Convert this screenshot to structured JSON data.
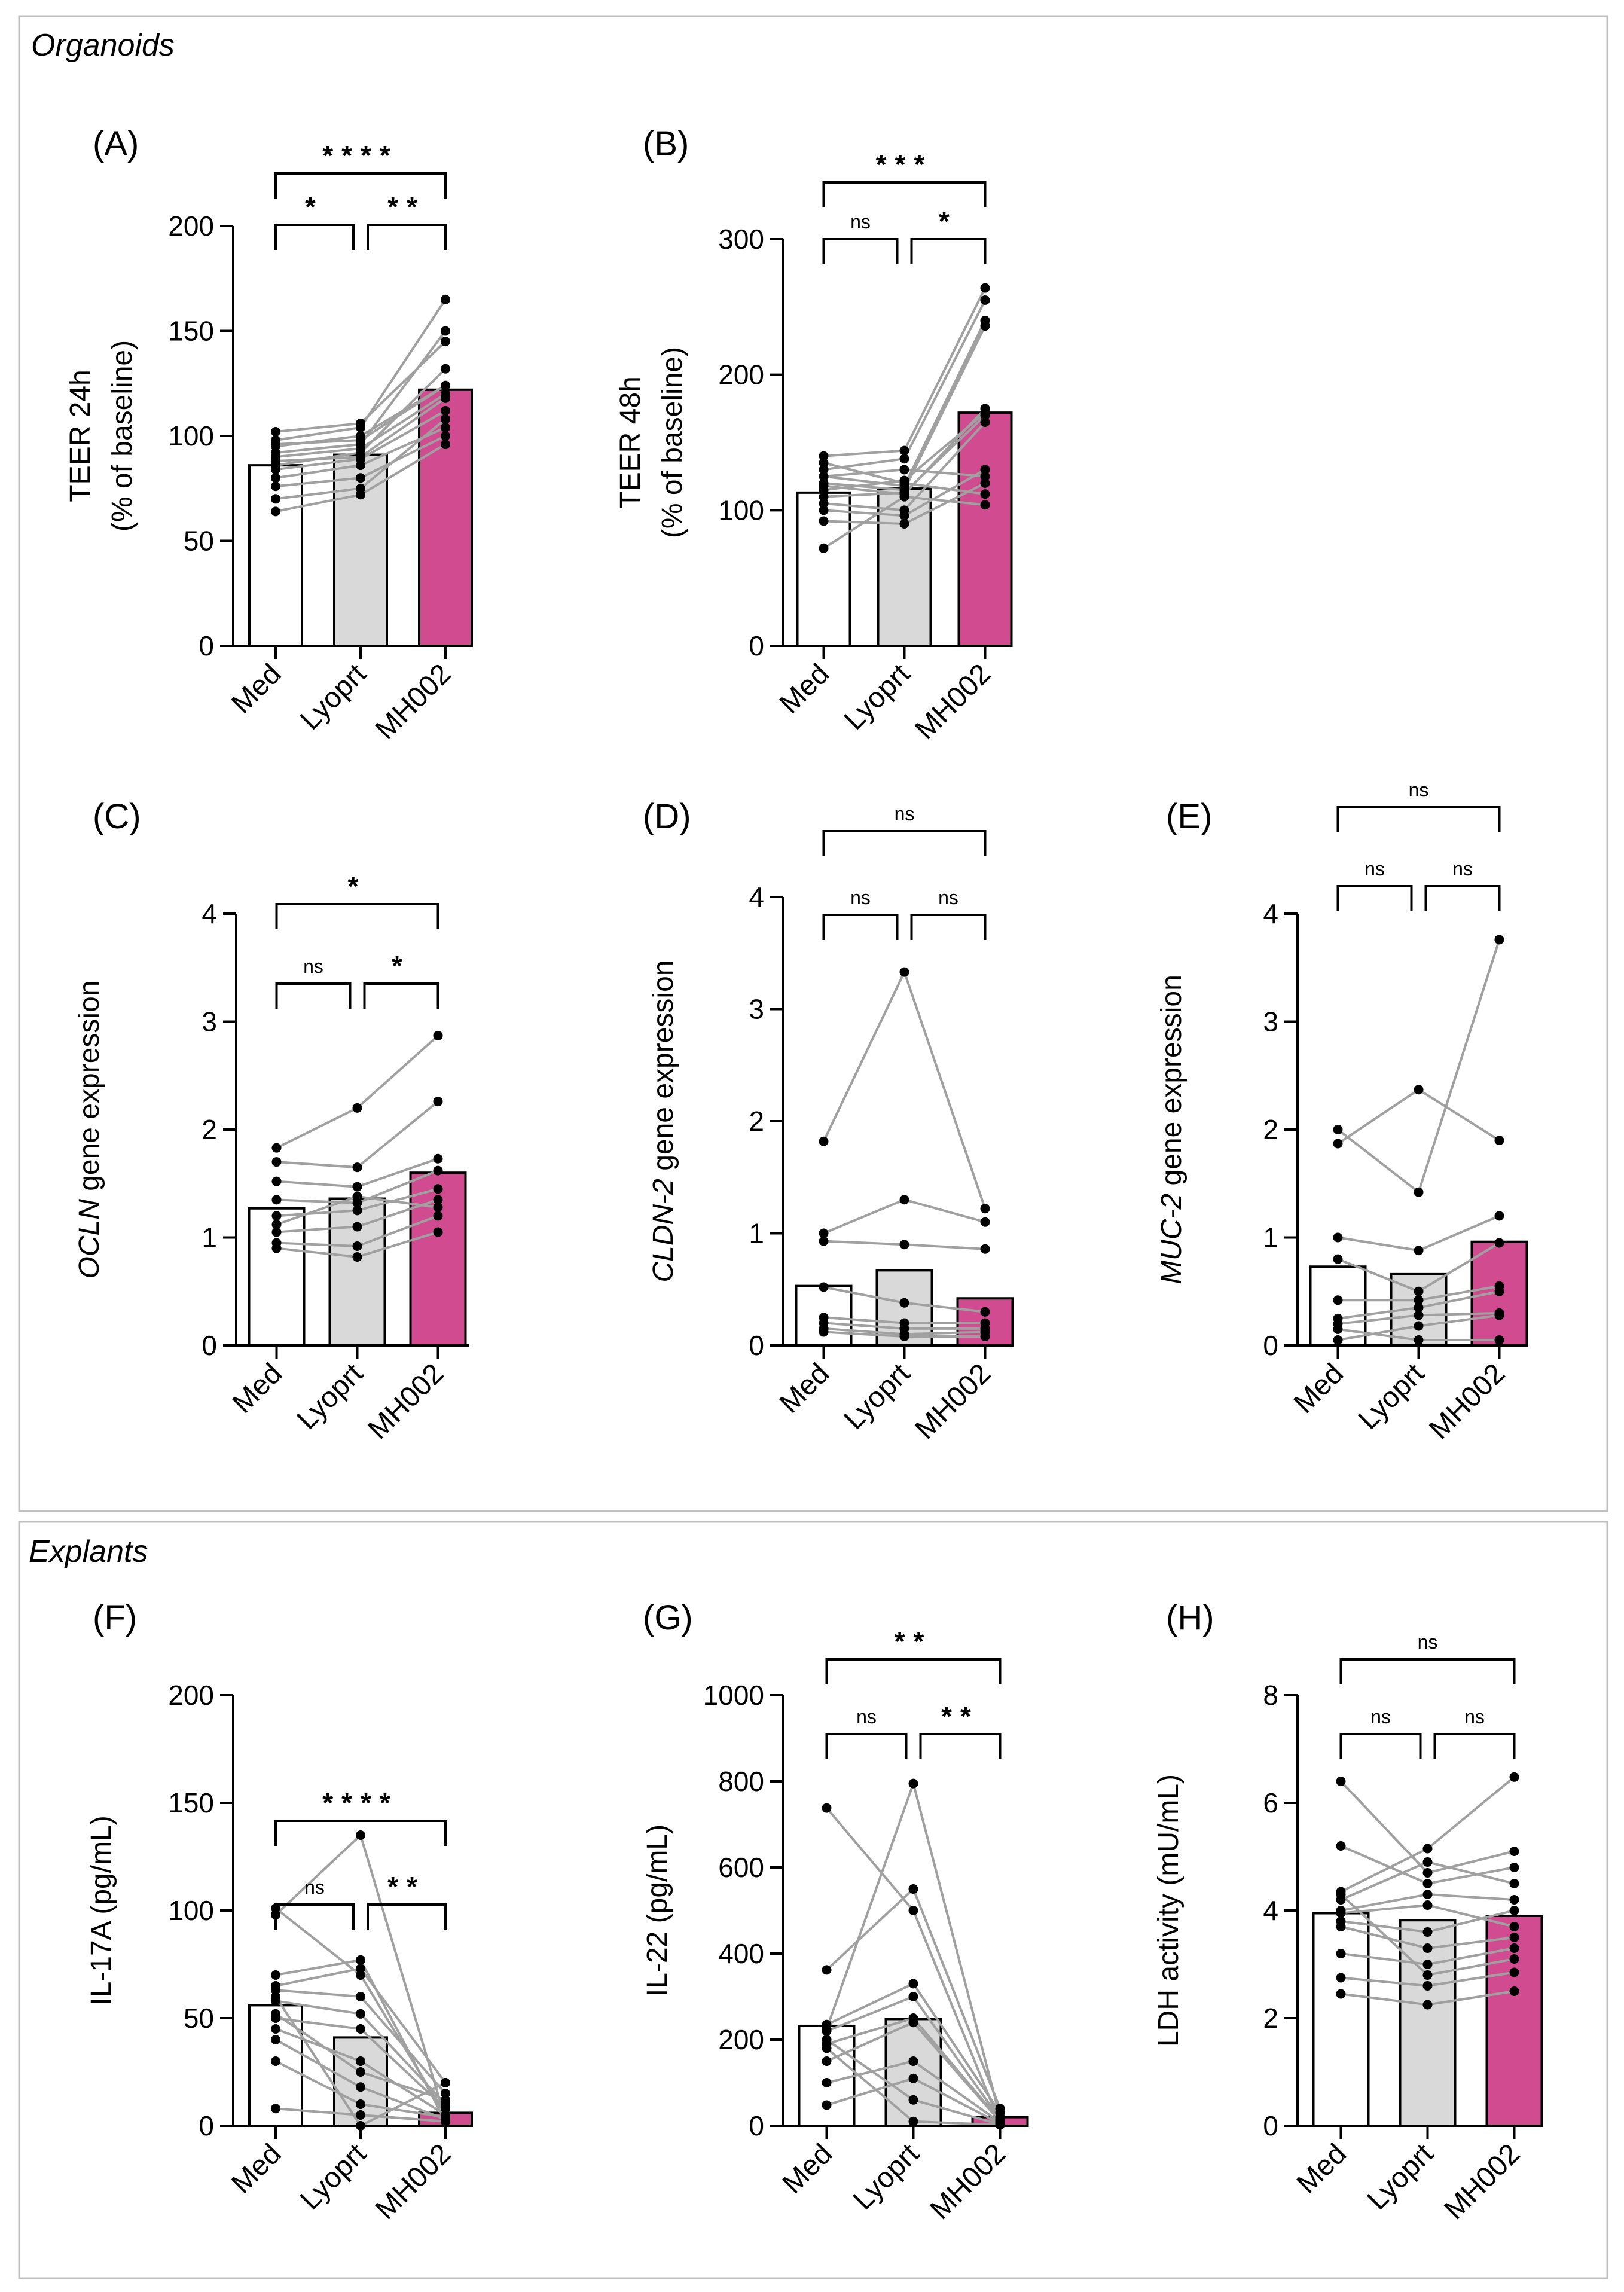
{
  "sections": [
    {
      "id": "organoids",
      "title": "Organoids"
    },
    {
      "id": "explants",
      "title": "Explants"
    }
  ],
  "colors": {
    "med": "#ffffff",
    "lyoprt": "#d9d9d9",
    "mh002": "#d14b91",
    "points": "#000000",
    "lines": "#a0a0a0",
    "axis": "#000000",
    "frame": "#c0c0c0"
  },
  "chart_data": [
    {
      "id": "A",
      "panel_label": "(A)",
      "type": "bar",
      "ylabel_lines": [
        {
          "parts": [
            {
              "t": "TEER 24h"
            }
          ]
        },
        {
          "parts": [
            {
              "t": "(% of baseline)"
            }
          ]
        }
      ],
      "ylim": [
        0,
        200
      ],
      "yticks": [
        0,
        50,
        100,
        150,
        200
      ],
      "categories": [
        "Med",
        "Lyoprt",
        "MH002"
      ],
      "values": [
        86,
        91,
        122
      ],
      "paired": [
        [
          88,
          90,
          118
        ],
        [
          92,
          96,
          150
        ],
        [
          98,
          104,
          165
        ],
        [
          80,
          86,
          104
        ],
        [
          95,
          100,
          124
        ],
        [
          84,
          89,
          112
        ],
        [
          102,
          106,
          145
        ],
        [
          90,
          94,
          120
        ],
        [
          64,
          72,
          96
        ],
        [
          76,
          80,
          100
        ],
        [
          86,
          92,
          132
        ],
        [
          70,
          75,
          108
        ],
        [
          96,
          98,
          124
        ]
      ],
      "annotations": [
        {
          "from": 0,
          "to": 2,
          "level": 2,
          "label": "****"
        },
        {
          "from": 0,
          "to": 1,
          "level": 1,
          "label": "*"
        },
        {
          "from": 1,
          "to": 2,
          "level": 1,
          "label": "**"
        }
      ]
    },
    {
      "id": "B",
      "panel_label": "(B)",
      "type": "bar",
      "ylabel_lines": [
        {
          "parts": [
            {
              "t": "TEER 48h"
            }
          ]
        },
        {
          "parts": [
            {
              "t": "(% of baseline)"
            }
          ]
        }
      ],
      "ylim": [
        0,
        300
      ],
      "yticks": [
        0,
        100,
        200,
        300
      ],
      "categories": [
        "Med",
        "Lyoprt",
        "MH002"
      ],
      "values": [
        113,
        116,
        172
      ],
      "paired": [
        [
          140,
          144,
          264
        ],
        [
          130,
          138,
          255
        ],
        [
          125,
          118,
          240
        ],
        [
          120,
          115,
          236
        ],
        [
          118,
          112,
          175
        ],
        [
          110,
          113,
          170
        ],
        [
          105,
          100,
          165
        ],
        [
          100,
          96,
          130
        ],
        [
          92,
          90,
          120
        ],
        [
          125,
          130,
          125
        ],
        [
          72,
          110,
          104
        ],
        [
          115,
          122,
          172
        ],
        [
          135,
          120,
          112
        ]
      ],
      "annotations": [
        {
          "from": 0,
          "to": 2,
          "level": 2,
          "label": "***"
        },
        {
          "from": 0,
          "to": 1,
          "level": 1,
          "label": "ns"
        },
        {
          "from": 1,
          "to": 2,
          "level": 1,
          "label": "*"
        }
      ]
    },
    {
      "id": "C",
      "panel_label": "(C)",
      "type": "bar",
      "ylabel_lines": [
        {
          "parts": [
            {
              "t": "OCLN",
              "i": true
            },
            {
              "t": " gene expression"
            }
          ]
        }
      ],
      "ylim": [
        0,
        4
      ],
      "yticks": [
        0,
        1,
        2,
        3,
        4
      ],
      "categories": [
        "Med",
        "Lyoprt",
        "MH002"
      ],
      "values": [
        1.27,
        1.36,
        1.6
      ],
      "paired": [
        [
          1.83,
          2.2,
          2.87
        ],
        [
          1.7,
          1.65,
          2.26
        ],
        [
          1.52,
          1.47,
          1.73
        ],
        [
          1.35,
          1.32,
          1.62
        ],
        [
          1.2,
          1.25,
          1.45
        ],
        [
          1.05,
          1.1,
          1.35
        ],
        [
          0.95,
          0.92,
          1.2
        ],
        [
          0.9,
          0.82,
          1.05
        ],
        [
          1.12,
          1.38,
          1.28
        ]
      ],
      "annotations": [
        {
          "from": 0,
          "to": 2,
          "level": 2,
          "label": "*"
        },
        {
          "from": 0,
          "to": 1,
          "level": 1,
          "label": "ns"
        },
        {
          "from": 1,
          "to": 2,
          "level": 1,
          "label": "*"
        }
      ]
    },
    {
      "id": "D",
      "panel_label": "(D)",
      "type": "bar",
      "ylabel_lines": [
        {
          "parts": [
            {
              "t": "CLDN-2",
              "i": true
            },
            {
              "t": " gene expression"
            }
          ]
        }
      ],
      "ylim": [
        0,
        4
      ],
      "yticks": [
        0,
        1,
        2,
        3,
        4
      ],
      "categories": [
        "Med",
        "Lyoprt",
        "MH002"
      ],
      "values": [
        0.53,
        0.67,
        0.42
      ],
      "paired": [
        [
          1.82,
          3.33,
          1.22
        ],
        [
          1.0,
          1.3,
          1.1
        ],
        [
          0.93,
          0.9,
          0.86
        ],
        [
          0.52,
          0.38,
          0.3
        ],
        [
          0.25,
          0.2,
          0.2
        ],
        [
          0.2,
          0.15,
          0.15
        ],
        [
          0.15,
          0.1,
          0.12
        ],
        [
          0.12,
          0.08,
          0.08
        ]
      ],
      "annotations": [
        {
          "from": 0,
          "to": 2,
          "level": 2,
          "label": "ns"
        },
        {
          "from": 0,
          "to": 1,
          "level": 1,
          "label": "ns"
        },
        {
          "from": 1,
          "to": 2,
          "level": 1,
          "label": "ns"
        }
      ]
    },
    {
      "id": "E",
      "panel_label": "(E)",
      "type": "bar",
      "ylabel_lines": [
        {
          "parts": [
            {
              "t": "MUC-2",
              "i": true
            },
            {
              "t": " gene expression"
            }
          ]
        }
      ],
      "ylim": [
        0,
        4
      ],
      "yticks": [
        0,
        1,
        2,
        3,
        4
      ],
      "categories": [
        "Med",
        "Lyoprt",
        "MH002"
      ],
      "values": [
        0.73,
        0.66,
        0.96
      ],
      "paired": [
        [
          2.0,
          1.42,
          3.76
        ],
        [
          1.87,
          2.37,
          1.9
        ],
        [
          1.0,
          0.88,
          1.2
        ],
        [
          0.8,
          0.5,
          0.95
        ],
        [
          0.42,
          0.42,
          0.55
        ],
        [
          0.25,
          0.35,
          0.5
        ],
        [
          0.2,
          0.28,
          0.3
        ],
        [
          0.05,
          0.18,
          0.28
        ],
        [
          0.15,
          0.05,
          0.05
        ]
      ],
      "annotations": [
        {
          "from": 0,
          "to": 2,
          "level": 2,
          "label": "ns"
        },
        {
          "from": 0,
          "to": 1,
          "level": 1,
          "label": "ns"
        },
        {
          "from": 1,
          "to": 2,
          "level": 1,
          "label": "ns"
        }
      ]
    },
    {
      "id": "F",
      "panel_label": "(F)",
      "type": "bar",
      "ylabel_lines": [
        {
          "parts": [
            {
              "t": "IL-17A (pg/mL)"
            }
          ]
        }
      ],
      "ylim": [
        0,
        200
      ],
      "yticks": [
        0,
        50,
        100,
        150,
        200
      ],
      "categories": [
        "Med",
        "Lyoprt",
        "MH002"
      ],
      "values": [
        56,
        41,
        6
      ],
      "paired": [
        [
          101,
          70,
          5
        ],
        [
          98,
          135,
          3
        ],
        [
          70,
          77,
          2
        ],
        [
          65,
          73,
          20
        ],
        [
          63,
          60,
          15
        ],
        [
          58,
          52,
          10
        ],
        [
          50,
          45,
          8
        ],
        [
          45,
          30,
          5
        ],
        [
          40,
          18,
          3
        ],
        [
          30,
          10,
          4
        ],
        [
          8,
          5,
          2
        ],
        [
          60,
          0,
          20
        ],
        [
          52,
          25,
          12
        ]
      ],
      "annotations": [
        {
          "from": 0,
          "to": 2,
          "level": 2,
          "label": "****"
        },
        {
          "from": 0,
          "to": 1,
          "level": 1,
          "label": "ns"
        },
        {
          "from": 1,
          "to": 2,
          "level": 1,
          "label": "**"
        }
      ]
    },
    {
      "id": "G",
      "panel_label": "(G)",
      "type": "bar",
      "ylabel_lines": [
        {
          "parts": [
            {
              "t": "IL-22 (pg/mL)"
            }
          ]
        }
      ],
      "ylim": [
        0,
        1000
      ],
      "yticks": [
        0,
        200,
        400,
        600,
        800,
        1000
      ],
      "categories": [
        "Med",
        "Lyoprt",
        "MH002"
      ],
      "values": [
        232,
        248,
        20
      ],
      "paired": [
        [
          738,
          500,
          5
        ],
        [
          362,
          550,
          40
        ],
        [
          235,
          330,
          30
        ],
        [
          225,
          795,
          20
        ],
        [
          220,
          300,
          15
        ],
        [
          190,
          250,
          12
        ],
        [
          150,
          240,
          10
        ],
        [
          100,
          150,
          8
        ],
        [
          48,
          110,
          5
        ],
        [
          200,
          60,
          3
        ],
        [
          180,
          10,
          2
        ]
      ],
      "annotations": [
        {
          "from": 0,
          "to": 2,
          "level": 2,
          "label": "**"
        },
        {
          "from": 0,
          "to": 1,
          "level": 1,
          "label": "ns"
        },
        {
          "from": 1,
          "to": 2,
          "level": 1,
          "label": "**"
        }
      ]
    },
    {
      "id": "H",
      "panel_label": "(H)",
      "type": "bar",
      "ylabel_lines": [
        {
          "parts": [
            {
              "t": "LDH activity (mU/mL)"
            }
          ]
        }
      ],
      "ylim": [
        0,
        8
      ],
      "yticks": [
        0,
        2,
        4,
        6,
        8
      ],
      "categories": [
        "Med",
        "Lyoprt",
        "MH002"
      ],
      "values": [
        3.95,
        3.82,
        3.9
      ],
      "paired": [
        [
          6.4,
          4.7,
          5.1
        ],
        [
          5.2,
          4.5,
          4.8
        ],
        [
          4.35,
          5.15,
          6.48
        ],
        [
          4.2,
          4.9,
          4.5
        ],
        [
          4.0,
          4.3,
          4.2
        ],
        [
          3.8,
          3.6,
          4.0
        ],
        [
          3.7,
          3.3,
          3.5
        ],
        [
          3.2,
          3.0,
          3.3
        ],
        [
          2.75,
          2.6,
          2.85
        ],
        [
          2.45,
          2.25,
          2.5
        ],
        [
          3.95,
          4.1,
          3.7
        ],
        [
          4.3,
          2.8,
          3.1
        ]
      ],
      "annotations": [
        {
          "from": 0,
          "to": 2,
          "level": 2,
          "label": "ns"
        },
        {
          "from": 0,
          "to": 1,
          "level": 1,
          "label": "ns"
        },
        {
          "from": 1,
          "to": 2,
          "level": 1,
          "label": "ns"
        }
      ]
    }
  ]
}
